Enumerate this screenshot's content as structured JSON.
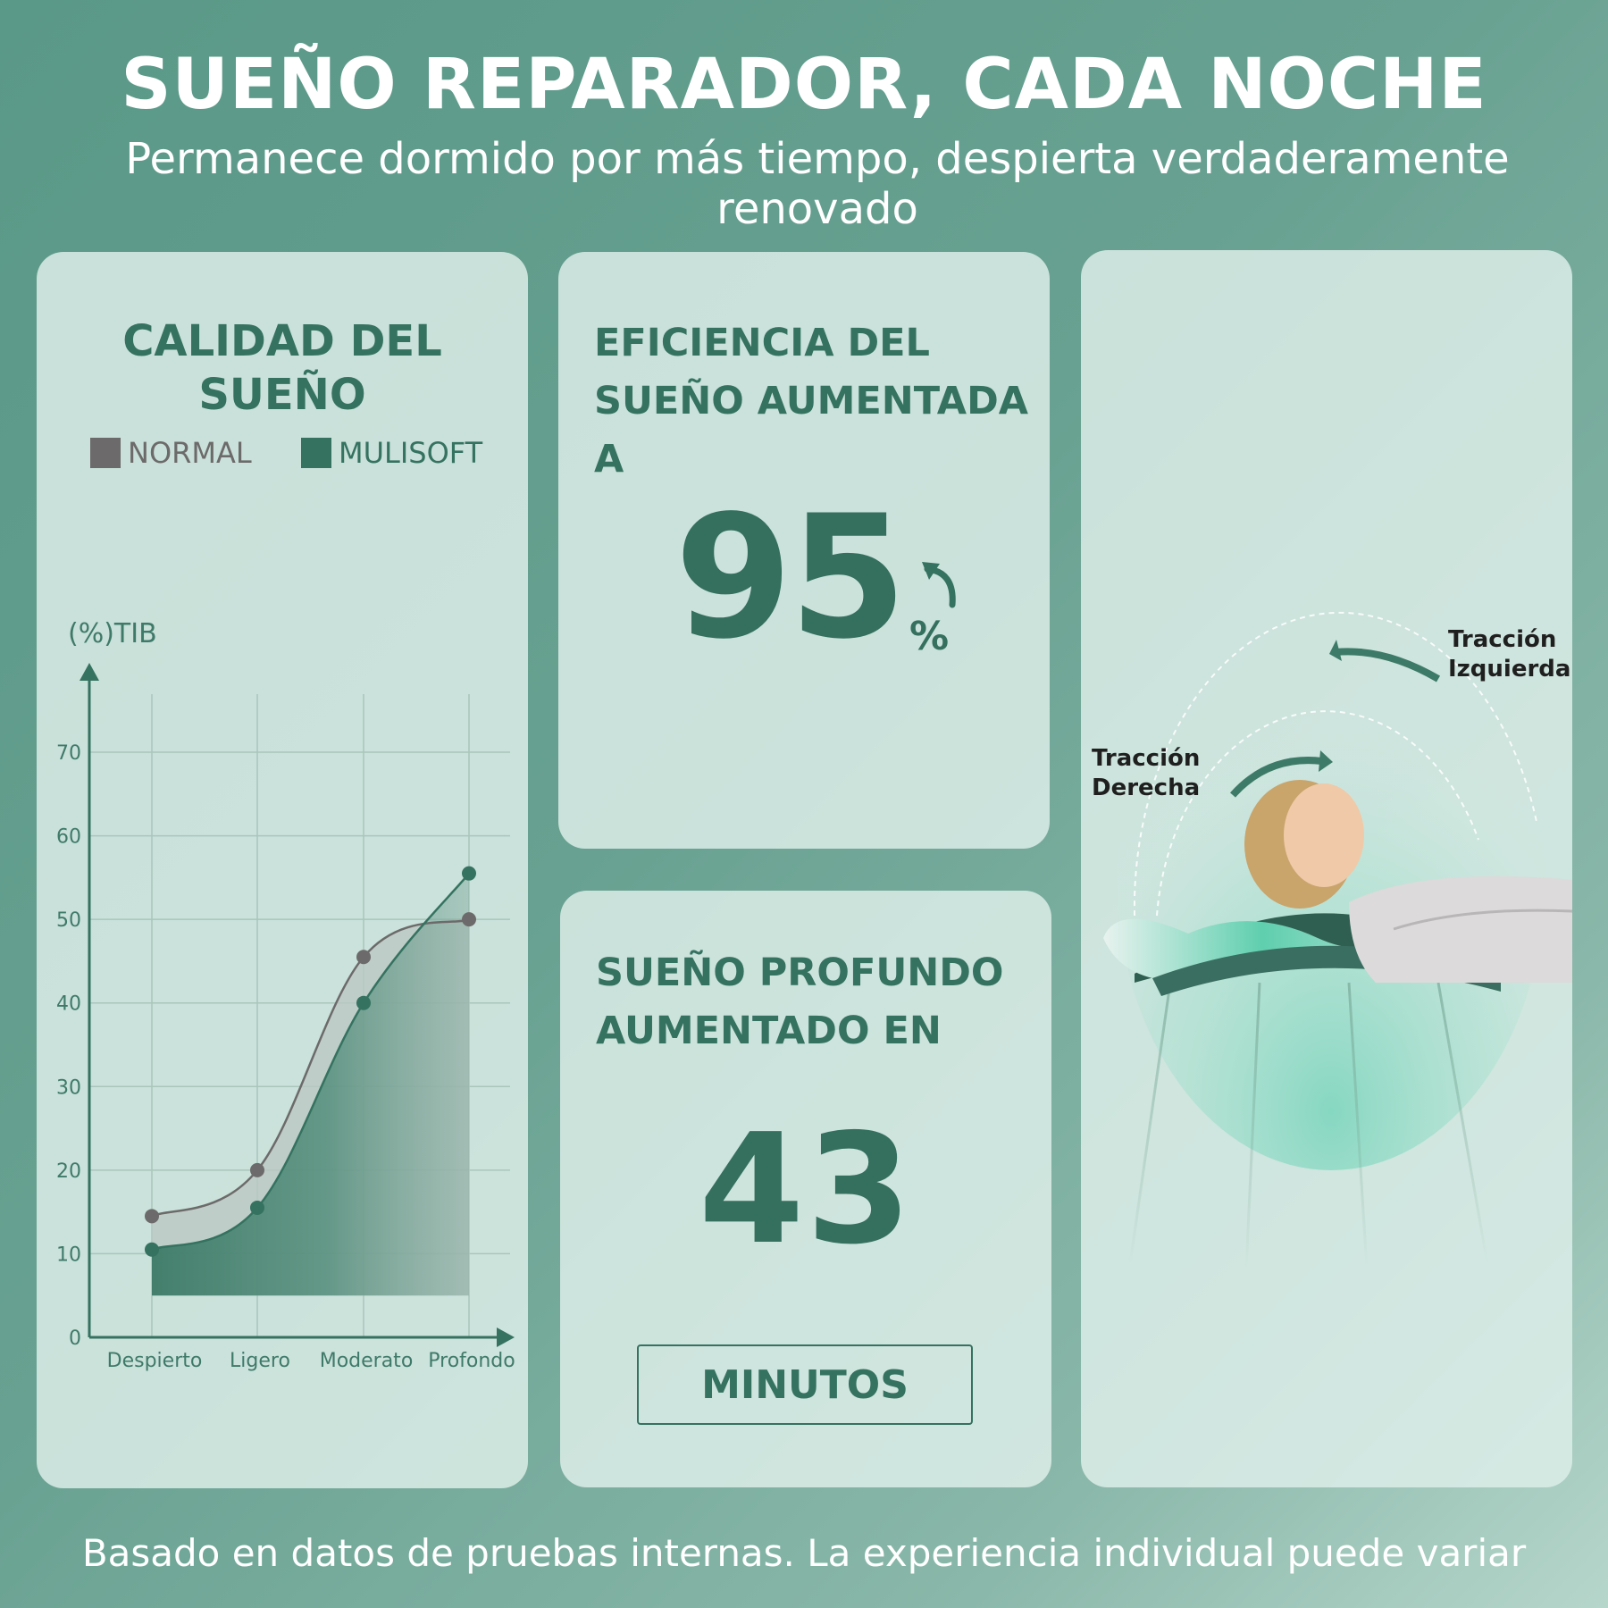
{
  "header": {
    "title": "SUEÑO REPARADOR, CADA NOCHE",
    "subtitle": "Permanece dormido por más tiempo, despierta verdaderamente renovado"
  },
  "quality_panel": {
    "title": "CALIDAD DEL SUEÑO",
    "legend": [
      {
        "label": "NORMAL",
        "color": "#6c6a6a"
      },
      {
        "label": "MULISOFT",
        "color": "#357260"
      }
    ]
  },
  "chart_data": {
    "type": "area",
    "title": "CALIDAD DEL SUEÑO",
    "ylabel": "(%)TIB",
    "xlabel": "",
    "categories": [
      "Despierto",
      "Ligero",
      "Moderato",
      "Profondo"
    ],
    "yticks": [
      0,
      10,
      20,
      30,
      40,
      50,
      60,
      70
    ],
    "ylim": [
      0,
      75
    ],
    "grid": true,
    "legend": "top",
    "series": [
      {
        "name": "NORMAL",
        "values": [
          14.5,
          20,
          45.5,
          50
        ],
        "color": "#6c6a6a"
      },
      {
        "name": "MULISOFT",
        "values": [
          10.5,
          15.5,
          40,
          55.5
        ],
        "color": "#357260"
      }
    ]
  },
  "efficiency_panel": {
    "title": "EFICIENCIA DEL SUEÑO AUMENTADA A",
    "value": "95",
    "unit": "%"
  },
  "deep_sleep_panel": {
    "title": "SUEÑO PROFUNDO AUMENTADO EN",
    "value": "43",
    "unit_label": "MINUTOS"
  },
  "image_panel": {
    "left_traction": "Tracción Izquierda",
    "right_traction": "Tracción Derecha"
  },
  "footer": {
    "note": "Basado en datos de pruebas internas. La experiencia individual puede variar"
  },
  "colors": {
    "accent": "#357260",
    "normal": "#6c6a6a",
    "background": "#68a191"
  }
}
